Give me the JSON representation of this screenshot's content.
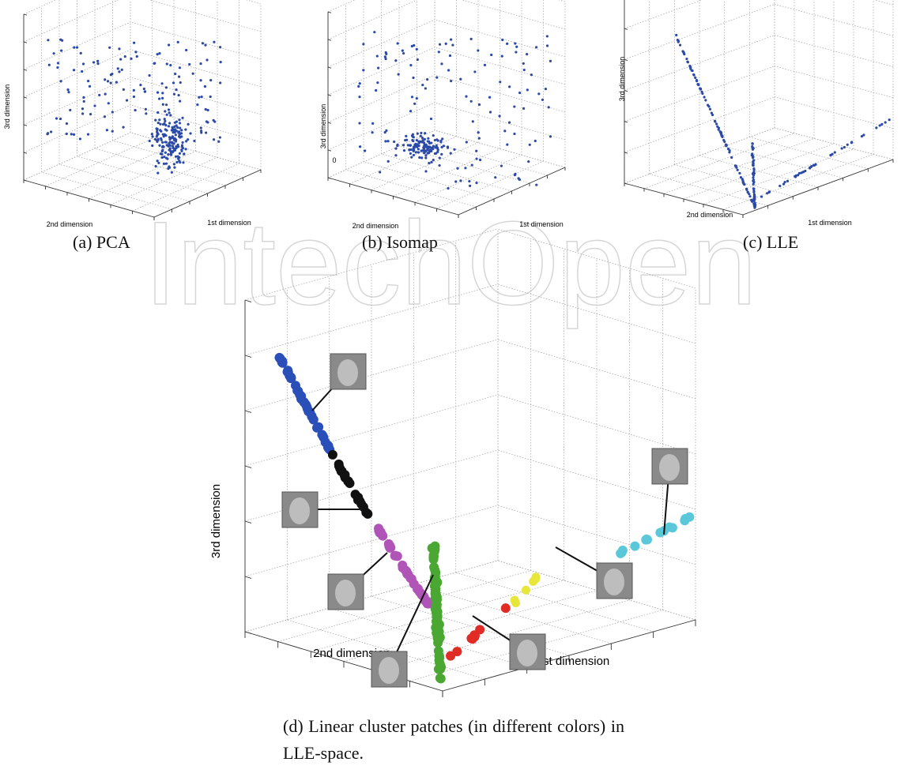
{
  "watermark": "IntechOpen",
  "panels": [
    {
      "caption": "(a) PCA",
      "x_label": "1st dimension",
      "y_label": "2nd dimension",
      "z_label": "3rd dimension"
    },
    {
      "caption": "(b) Isomap",
      "x_label": "1st dimension",
      "y_label": "2nd dimension",
      "z_label": "3rd dimension",
      "z_tick": "0"
    },
    {
      "caption": "(c) LLE",
      "x_label": "1st dimension",
      "y_label": "2nd dimension",
      "z_label": "3rd dimension"
    },
    {
      "caption": "(d) Linear cluster patches (in different colors) in LLE-space.",
      "x_label": "1st dimension",
      "y_label": "2nd dimension",
      "z_label": "3rd dimension"
    }
  ]
}
